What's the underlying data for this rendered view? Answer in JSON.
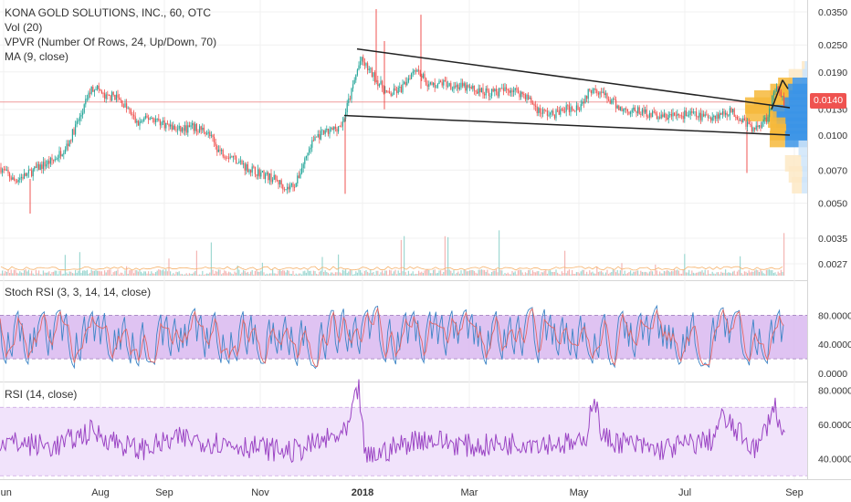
{
  "legends": {
    "title": "KONA GOLD SOLUTIONS, INC., 60, OTC",
    "vol": "Vol (20)",
    "vpvr": "VPVR (Number Of Rows, 24, Up/Down, 70)",
    "ma": "MA (9, close)",
    "stoch": "Stoch RSI (3, 3, 14, 14, close)",
    "rsi": "RSI (14, close)"
  },
  "last_price_tag": "0.0140",
  "colors": {
    "up": "#26a69a",
    "down": "#ef5350",
    "stoch_k": "#3d85c6",
    "stoch_d": "#e06666",
    "stoch_band": "#d9b8f0",
    "rsi_line": "#9b45c4",
    "rsi_band": "#f1e3fb",
    "trendline": "#222222",
    "vpvr_up_strong": "#3b94e6",
    "vpvr_up_light": "#cfe5f9",
    "vpvr_down_strong": "#f6b93b",
    "vpvr_down_light": "#fde9c6"
  },
  "chart_data": [
    {
      "type": "candlestick",
      "panel": "price",
      "legend": "KONA GOLD SOLUTIONS, INC., 60, OTC",
      "y_axis": {
        "scale": "log",
        "ticks": [
          "0.0350",
          "0.0250",
          "0.0190",
          "0.0130",
          "0.0100",
          "0.0070",
          "0.0050",
          "0.0035",
          "0.0027"
        ]
      },
      "x_axis": {
        "ticks": [
          "Jun",
          "Aug",
          "Sep",
          "Nov",
          "2018",
          "Mar",
          "May",
          "Jul",
          "Sep"
        ]
      },
      "last_price": 0.014,
      "approx_close_path": [
        [
          0,
          0.0072
        ],
        [
          15,
          0.0063
        ],
        [
          30,
          0.0067
        ],
        [
          45,
          0.0073
        ],
        [
          60,
          0.0078
        ],
        [
          75,
          0.0092
        ],
        [
          90,
          0.0125
        ],
        [
          98,
          0.0155
        ],
        [
          105,
          0.0165
        ],
        [
          115,
          0.0145
        ],
        [
          125,
          0.015
        ],
        [
          140,
          0.013
        ],
        [
          150,
          0.0112
        ],
        [
          165,
          0.012
        ],
        [
          180,
          0.0112
        ],
        [
          195,
          0.0105
        ],
        [
          210,
          0.0108
        ],
        [
          225,
          0.0105
        ],
        [
          240,
          0.0085
        ],
        [
          255,
          0.008
        ],
        [
          270,
          0.0072
        ],
        [
          285,
          0.0068
        ],
        [
          300,
          0.0064
        ],
        [
          315,
          0.0058
        ],
        [
          325,
          0.0062
        ],
        [
          335,
          0.008
        ],
        [
          345,
          0.0098
        ],
        [
          360,
          0.0103
        ],
        [
          375,
          0.0112
        ],
        [
          385,
          0.0155
        ],
        [
          395,
          0.0215
        ],
        [
          410,
          0.018
        ],
        [
          425,
          0.015
        ],
        [
          440,
          0.016
        ],
        [
          455,
          0.02
        ],
        [
          470,
          0.0165
        ],
        [
          485,
          0.017
        ],
        [
          500,
          0.0165
        ],
        [
          515,
          0.016
        ],
        [
          530,
          0.0155
        ],
        [
          545,
          0.0155
        ],
        [
          560,
          0.016
        ],
        [
          575,
          0.015
        ],
        [
          590,
          0.0128
        ],
        [
          605,
          0.0123
        ],
        [
          620,
          0.013
        ],
        [
          635,
          0.0135
        ],
        [
          650,
          0.0165
        ],
        [
          665,
          0.0145
        ],
        [
          680,
          0.013
        ],
        [
          695,
          0.0128
        ],
        [
          710,
          0.0125
        ],
        [
          725,
          0.012
        ],
        [
          740,
          0.0122
        ],
        [
          755,
          0.0124
        ],
        [
          770,
          0.012
        ],
        [
          785,
          0.0122
        ],
        [
          800,
          0.0128
        ],
        [
          815,
          0.0115
        ],
        [
          825,
          0.0105
        ],
        [
          840,
          0.012
        ],
        [
          850,
          0.016
        ],
        [
          858,
          0.014
        ]
      ],
      "trendlines": [
        {
          "from": [
            391,
            0.024
          ],
          "to": [
            865,
            0.0132
          ]
        },
        {
          "from": [
            377,
            0.0122
          ],
          "to": [
            865,
            0.01
          ]
        },
        {
          "from": [
            845,
            0.013
          ],
          "to": [
            857,
            0.0175
          ]
        },
        {
          "from": [
            857,
            0.0175
          ],
          "to": [
            863,
            0.016
          ]
        }
      ],
      "vpvr_rows": [
        {
          "price": 0.0195,
          "up": 10,
          "down": 12
        },
        {
          "price": 0.018,
          "up": 20,
          "down": 55
        },
        {
          "price": 0.0165,
          "up": 60,
          "down": 58
        },
        {
          "price": 0.0155,
          "up": 78,
          "down": 72
        },
        {
          "price": 0.0145,
          "up": 75,
          "down": 140
        },
        {
          "price": 0.0135,
          "up": 92,
          "down": 160
        },
        {
          "price": 0.0125,
          "up": 140,
          "down": 110
        },
        {
          "price": 0.0117,
          "up": 124,
          "down": 35
        },
        {
          "price": 0.011,
          "up": 88,
          "down": 62
        },
        {
          "price": 0.0103,
          "up": 85,
          "down": 65
        },
        {
          "price": 0.0096,
          "up": 90,
          "down": 62
        },
        {
          "price": 0.0087,
          "up": 35,
          "down": 0
        },
        {
          "price": 0.0075,
          "up": 25,
          "down": 65
        },
        {
          "price": 0.0067,
          "up": 20,
          "down": 55
        },
        {
          "price": 0.006,
          "up": 22,
          "down": 40
        }
      ]
    },
    {
      "type": "bar",
      "panel": "volume",
      "legend": "Vol (20)",
      "notes": "small volume bars at bottom of price pane with spikes near Aug, Nov-Jan and late Aug"
    },
    {
      "type": "line",
      "panel": "stoch_rsi",
      "legend": "Stoch RSI (3, 3, 14, 14, close)",
      "y_axis": {
        "ticks": [
          "80.0000",
          "40.0000",
          "0.0000"
        ]
      },
      "band": [
        20,
        80
      ],
      "range": [
        0,
        100
      ]
    },
    {
      "type": "line",
      "panel": "rsi",
      "legend": "RSI (14, close)",
      "y_axis": {
        "ticks": [
          "80.0000",
          "60.0000",
          "40.0000"
        ]
      },
      "band": [
        30,
        70
      ],
      "range": [
        25,
        85
      ],
      "approx_path": [
        [
          0,
          50
        ],
        [
          60,
          47
        ],
        [
          100,
          56
        ],
        [
          150,
          45
        ],
        [
          200,
          52
        ],
        [
          260,
          48
        ],
        [
          320,
          44
        ],
        [
          380,
          55
        ],
        [
          393,
          82
        ],
        [
          400,
          40
        ],
        [
          460,
          52
        ],
        [
          520,
          47
        ],
        [
          580,
          50
        ],
        [
          640,
          48
        ],
        [
          650,
          78
        ],
        [
          660,
          52
        ],
        [
          720,
          45
        ],
        [
          780,
          51
        ],
        [
          790,
          64
        ],
        [
          830,
          45
        ],
        [
          848,
          72
        ],
        [
          858,
          52
        ]
      ]
    }
  ]
}
